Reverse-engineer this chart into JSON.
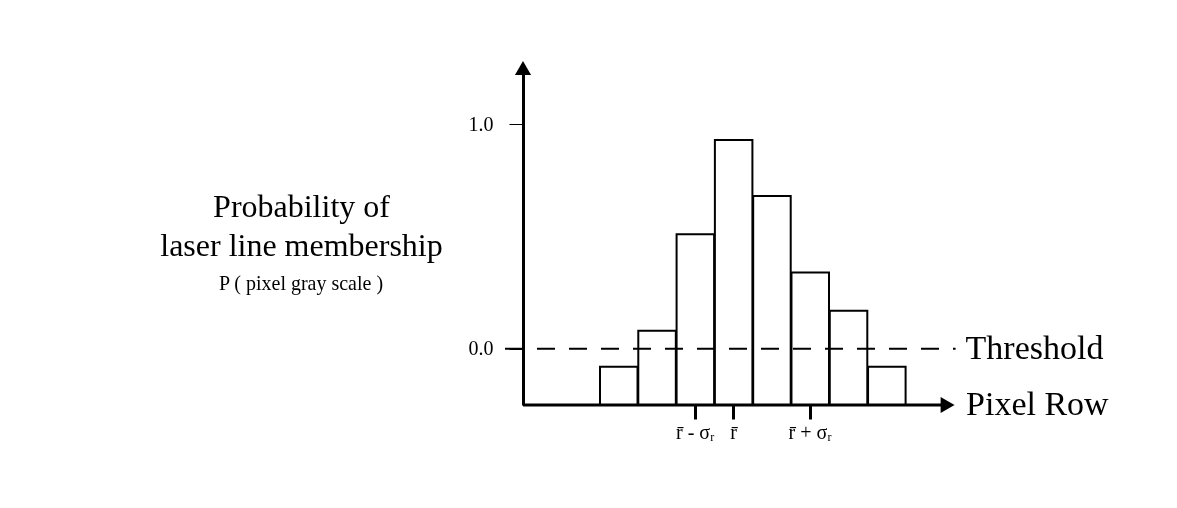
{
  "chart_data": {
    "type": "bar",
    "categories": [
      null,
      null,
      "r̄ - σᵣ",
      "r̄",
      null,
      "r̄ + σᵣ",
      null,
      null
    ],
    "base": [
      -0.25,
      -0.25,
      -0.25,
      -0.25,
      -0.25,
      -0.25,
      -0.25,
      -0.25
    ],
    "values": [
      0.17,
      0.33,
      0.76,
      1.18,
      0.93,
      0.59,
      0.42,
      0.17
    ],
    "color": "#ffffff",
    "ylim": [
      -0.25,
      1.25
    ],
    "yticks": [
      {
        "value": 0,
        "label": "0.0"
      },
      {
        "value": 1,
        "label": "1.0"
      }
    ],
    "xlabel": "Pixel Row",
    "ylabel": "Probability of laser line membership",
    "ref_lines": [
      {
        "axis": "y",
        "value": 0,
        "label": "Threshold",
        "line_style": "dashed"
      }
    ],
    "annotations": [
      "P ( pixel gray scale )"
    ]
  }
}
